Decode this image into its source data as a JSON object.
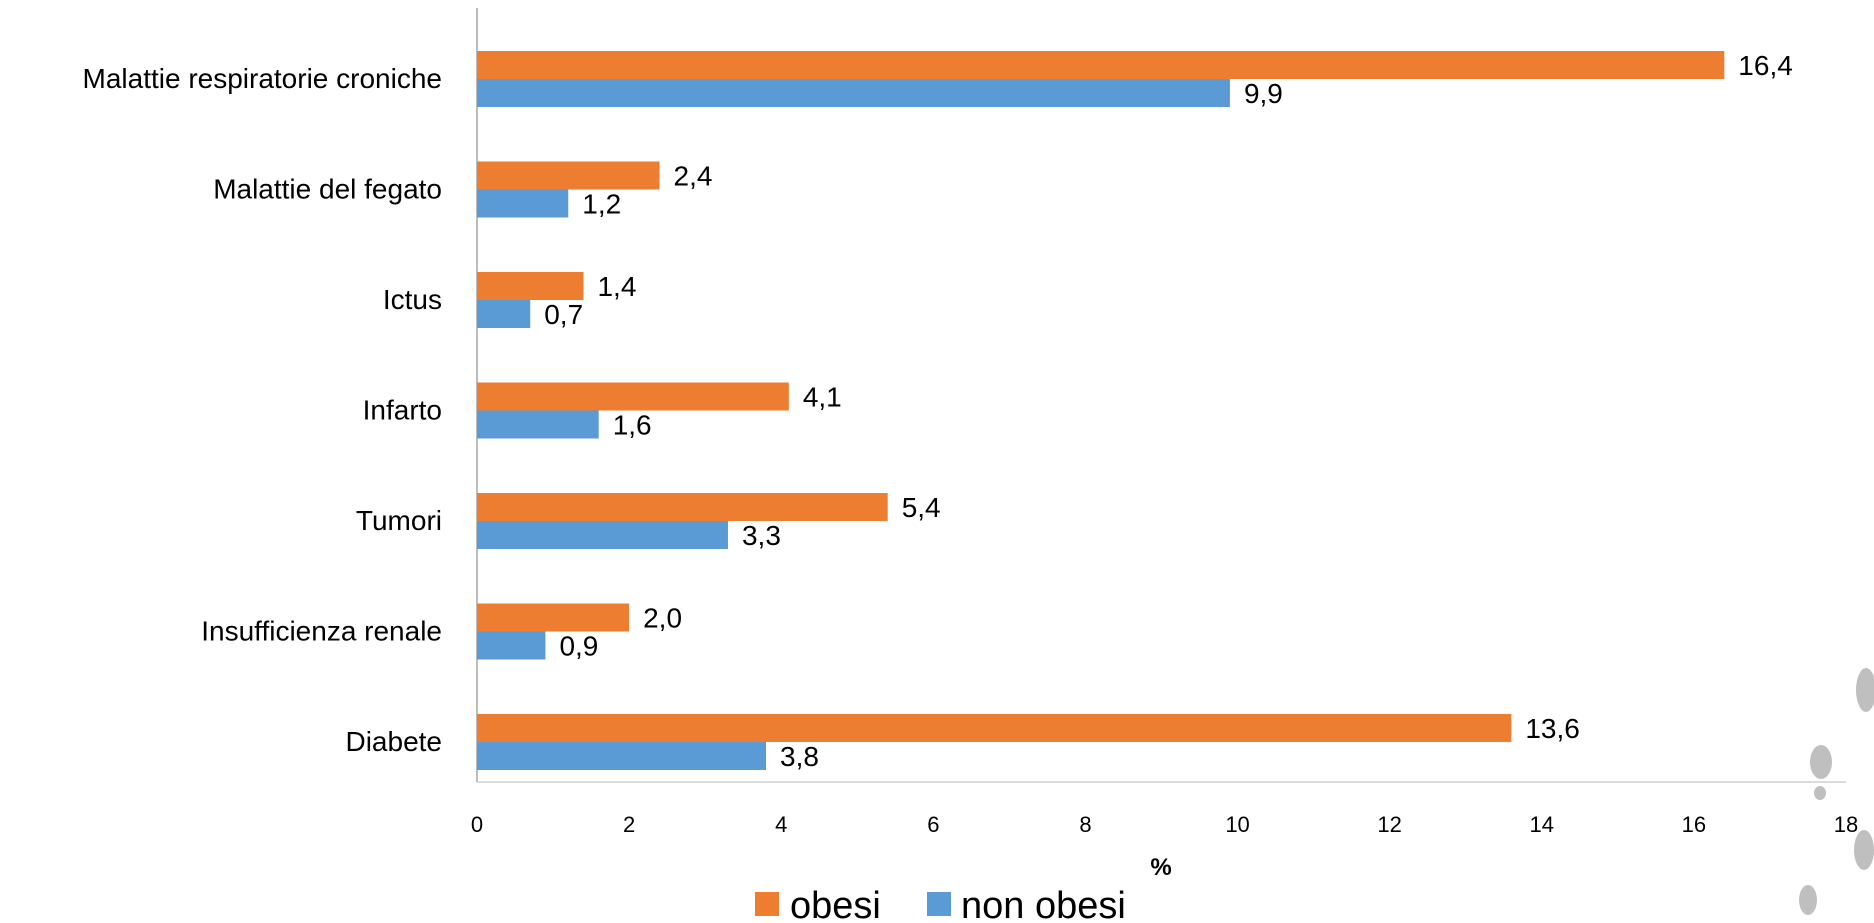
{
  "chart_data": {
    "type": "bar",
    "orientation": "horizontal",
    "categories": [
      "Malattie respiratorie croniche",
      "Malattie del fegato",
      "Ictus",
      "Infarto",
      "Tumori",
      "Insufficienza renale",
      "Diabete"
    ],
    "series": [
      {
        "name": "obesi",
        "color": "#ED7D31",
        "values": [
          16.4,
          2.4,
          1.4,
          4.1,
          5.4,
          2.0,
          13.6
        ],
        "labels": [
          "16,4",
          "2,4",
          "1,4",
          "4,1",
          "5,4",
          "2,0",
          "13,6"
        ]
      },
      {
        "name": "non obesi",
        "color": "#5B9BD5",
        "values": [
          9.9,
          1.2,
          0.7,
          1.6,
          3.3,
          0.9,
          3.8
        ],
        "labels": [
          "9,9",
          "1,2",
          "0,7",
          "1,6",
          "3,3",
          "0,9",
          "3,8"
        ]
      }
    ],
    "xlabel": "%",
    "ylabel": "",
    "xlim": [
      0,
      18
    ],
    "xticks": [
      0,
      2,
      4,
      6,
      8,
      10,
      12,
      14,
      16,
      18
    ],
    "grid": false,
    "legend_position": "bottom"
  },
  "decoration": {
    "footprint_color": "#BFBFBF",
    "footprint_icon": "footprints-icon"
  }
}
